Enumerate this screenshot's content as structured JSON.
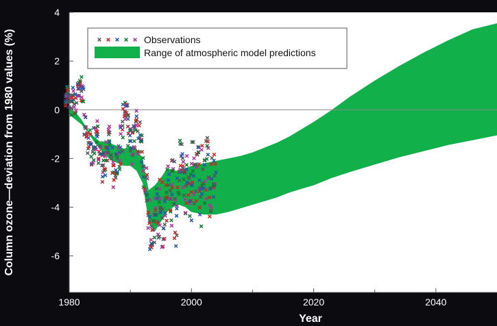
{
  "chart_data": {
    "type": "area",
    "xlabel": "Year",
    "ylabel": "Column ozone—deviation from 1980 values (%)",
    "xlim": [
      1980,
      2050
    ],
    "ylim": [
      -7.5,
      4
    ],
    "xticks": [
      1980,
      2000,
      2020,
      2040
    ],
    "xminor": [
      1990,
      2010,
      2030
    ],
    "yticks": [
      4,
      2,
      0,
      -2,
      -4,
      -6
    ],
    "grid": false,
    "zero_line": true,
    "legend": {
      "placement": "top-left",
      "entries": [
        {
          "label": "Observations",
          "kind": "marker",
          "marker": "x",
          "colors": [
            "#555555",
            "#cc2222",
            "#2255aa",
            "#117733",
            "#aa3399"
          ]
        },
        {
          "label": "Range of atmospheric model predictions",
          "kind": "band",
          "color": "#12b04a"
        }
      ]
    },
    "series": [
      {
        "name": "Range of atmospheric model predictions",
        "kind": "band",
        "color": "#12b04a",
        "x": [
          1980,
          1981,
          1982,
          1983,
          1984,
          1985,
          1986,
          1987,
          1988,
          1989,
          1990,
          1991,
          1992,
          1993,
          1994,
          1995,
          1996,
          1997,
          1998,
          1999,
          2000,
          2002,
          2004,
          2006,
          2008,
          2010,
          2012,
          2014,
          2016,
          2018,
          2020,
          2023,
          2026,
          2030,
          2034,
          2038,
          2042,
          2046,
          2050
        ],
        "lower": [
          -0.2,
          -0.4,
          -0.6,
          -0.9,
          -1.3,
          -1.6,
          -1.9,
          -2.1,
          -2.2,
          -2.3,
          -2.3,
          -2.5,
          -3.0,
          -4.6,
          -5.0,
          -4.6,
          -4.2,
          -4.0,
          -3.9,
          -4.0,
          -4.2,
          -4.3,
          -4.3,
          -4.2,
          -4.05,
          -3.9,
          -3.75,
          -3.6,
          -3.4,
          -3.25,
          -3.1,
          -2.8,
          -2.55,
          -2.25,
          -1.95,
          -1.7,
          -1.45,
          -1.25,
          -1.05
        ],
        "upper": [
          0.1,
          -0.1,
          -0.4,
          -0.8,
          -1.1,
          -1.3,
          -1.3,
          -1.4,
          -1.5,
          -1.6,
          -1.5,
          -1.6,
          -2.0,
          -3.3,
          -3.1,
          -2.8,
          -2.4,
          -2.5,
          -2.5,
          -2.4,
          -2.3,
          -2.2,
          -2.1,
          -2.0,
          -1.9,
          -1.75,
          -1.55,
          -1.35,
          -1.1,
          -0.8,
          -0.5,
          0.0,
          0.55,
          1.2,
          1.8,
          2.35,
          2.85,
          3.3,
          3.55
        ]
      },
      {
        "name": "Observations",
        "kind": "scatter",
        "marker": "x",
        "colors": [
          "#555555",
          "#cc2222",
          "#2255aa",
          "#117733",
          "#aa3399"
        ],
        "x": [
          1979.5,
          1979.8,
          1980.2,
          1980.6,
          1981.0,
          1981.4,
          1981.8,
          1982.2,
          1982.6,
          1983.0,
          1983.4,
          1983.8,
          1984.2,
          1984.6,
          1985.0,
          1985.4,
          1985.8,
          1986.2,
          1986.6,
          1987.0,
          1987.4,
          1987.8,
          1988.2,
          1988.6,
          1989.0,
          1989.4,
          1989.8,
          1990.2,
          1990.6,
          1991.0,
          1991.4,
          1991.8,
          1992.2,
          1992.6,
          1993.0,
          1993.4,
          1993.8,
          1994.2,
          1994.6,
          1995.0,
          1995.4,
          1995.8,
          1996.2,
          1996.6,
          1997.0,
          1997.4,
          1997.8,
          1998.2,
          1998.6,
          1999.0,
          1999.4,
          1999.8,
          2000.2,
          2000.6,
          2001.0,
          2001.4,
          2001.8,
          2002.2,
          2002.6,
          2003.0,
          2003.4,
          2003.8
        ],
        "y": [
          0.4,
          0.7,
          0.2,
          0.6,
          0.3,
          0.9,
          1.1,
          0.5,
          -0.6,
          -1.4,
          -1.1,
          -1.8,
          -1.3,
          -0.9,
          -1.7,
          -2.4,
          -2.1,
          -1.6,
          -1.2,
          -2.0,
          -2.6,
          -2.2,
          -1.9,
          -1.1,
          -0.2,
          0.0,
          -0.8,
          -1.6,
          -0.9,
          -0.4,
          -1.2,
          -1.8,
          -2.6,
          -3.1,
          -4.3,
          -5.3,
          -4.8,
          -3.9,
          -4.4,
          -3.5,
          -4.9,
          -4.0,
          -3.1,
          -3.8,
          -2.9,
          -4.6,
          -3.4,
          -2.0,
          -2.7,
          -3.3,
          -2.5,
          -3.6,
          -2.2,
          -2.9,
          -1.7,
          -3.8,
          -2.4,
          -3.0,
          -2.1,
          -3.4,
          -2.6,
          -2.3
        ],
        "spread": [
          0.3,
          0.4,
          0.5,
          0.4,
          0.5,
          0.4,
          0.3,
          0.5,
          0.5,
          0.6,
          0.5,
          0.5,
          0.6,
          0.5,
          0.6,
          0.6,
          0.6,
          0.5,
          0.6,
          0.6,
          0.6,
          0.5,
          0.6,
          0.7,
          0.5,
          0.4,
          0.7,
          0.8,
          0.7,
          0.6,
          0.8,
          0.8,
          0.8,
          0.9,
          0.9,
          0.7,
          0.8,
          0.9,
          0.9,
          0.9,
          0.9,
          0.9,
          1.0,
          1.0,
          1.0,
          1.0,
          1.0,
          1.1,
          1.0,
          1.0,
          1.1,
          1.0,
          1.1,
          1.0,
          1.1,
          1.0,
          1.1,
          1.0,
          1.1,
          1.0,
          1.0,
          1.0
        ]
      }
    ],
    "colors": {
      "background": "#0b0b10",
      "plot_background": "#ffffff",
      "axis": "#555555",
      "zero_line": "#888888",
      "text": "#ffffff",
      "legend_text": "#111111"
    }
  }
}
